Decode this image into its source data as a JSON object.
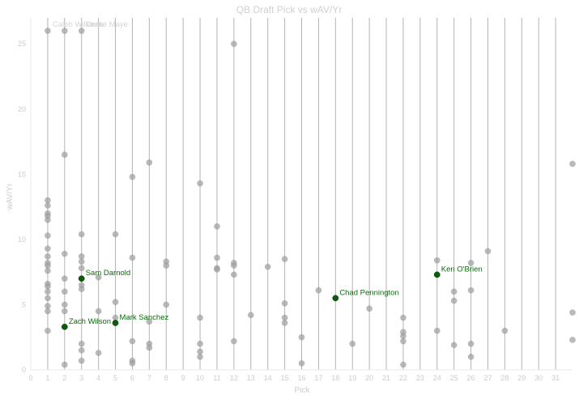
{
  "chart_data": {
    "type": "scatter",
    "title": "QB Draft Pick vs wAV/Yr",
    "xlabel": "Pick",
    "ylabel": "wAV/Yr",
    "xlim": [
      0,
      32
    ],
    "ylim": [
      0,
      27
    ],
    "xticks": [
      0,
      1,
      2,
      3,
      4,
      5,
      6,
      7,
      8,
      9,
      10,
      11,
      12,
      13,
      14,
      15,
      16,
      17,
      18,
      19,
      20,
      21,
      22,
      23,
      24,
      25,
      26,
      27,
      28,
      29,
      30,
      31
    ],
    "yticks": [
      0,
      5,
      10,
      15,
      20,
      25
    ],
    "vertical_grid": true,
    "horizontal_grid": false,
    "colors": {
      "point": "#a0a0a0",
      "highlight": "#0b5d0b",
      "highlight_label": "#0b6b0b"
    },
    "points": [
      [
        1,
        26
      ],
      [
        1,
        13
      ],
      [
        1,
        12.6
      ],
      [
        1,
        12
      ],
      [
        1,
        11.8
      ],
      [
        1,
        11.5
      ],
      [
        1,
        10.3
      ],
      [
        1,
        9.3
      ],
      [
        1,
        8.7
      ],
      [
        1,
        8.2
      ],
      [
        1,
        8.0
      ],
      [
        1,
        7.6
      ],
      [
        1,
        6.6
      ],
      [
        1,
        6.4
      ],
      [
        1,
        6.0
      ],
      [
        1,
        5.5
      ],
      [
        1,
        4.9
      ],
      [
        1,
        4.5
      ],
      [
        1,
        3.0
      ],
      [
        2,
        26
      ],
      [
        2,
        16.5
      ],
      [
        2,
        8.9
      ],
      [
        2,
        7.0
      ],
      [
        2,
        6.0
      ],
      [
        2,
        5.0
      ],
      [
        2,
        4.5
      ],
      [
        2,
        0.4
      ],
      [
        3,
        26
      ],
      [
        3,
        10.4
      ],
      [
        3,
        8.7
      ],
      [
        3,
        8.3
      ],
      [
        3,
        7.8
      ],
      [
        3,
        6.5
      ],
      [
        3,
        6.2
      ],
      [
        3,
        2.0
      ],
      [
        3,
        1.5
      ],
      [
        3,
        0.7
      ],
      [
        4,
        7.1
      ],
      [
        4,
        4.5
      ],
      [
        4,
        1.3
      ],
      [
        5,
        10.4
      ],
      [
        5,
        5.2
      ],
      [
        5,
        4.0
      ],
      [
        6,
        14.8
      ],
      [
        6,
        8.6
      ],
      [
        6,
        2.2
      ],
      [
        6,
        0.7
      ],
      [
        6,
        0.5
      ],
      [
        7,
        15.9
      ],
      [
        7,
        3.7
      ],
      [
        7,
        2.0
      ],
      [
        7,
        1.7
      ],
      [
        8,
        8.3
      ],
      [
        8,
        8.0
      ],
      [
        8,
        5.0
      ],
      [
        10,
        14.3
      ],
      [
        10,
        4.0
      ],
      [
        10,
        2.0
      ],
      [
        10,
        1.4
      ],
      [
        10,
        1.0
      ],
      [
        11,
        11.0
      ],
      [
        11,
        8.6
      ],
      [
        11,
        7.8
      ],
      [
        11,
        7.7
      ],
      [
        12,
        25
      ],
      [
        12,
        8.2
      ],
      [
        12,
        8.0
      ],
      [
        12,
        7.3
      ],
      [
        12,
        2.2
      ],
      [
        13,
        4.2
      ],
      [
        14,
        7.9
      ],
      [
        15,
        8.5
      ],
      [
        15,
        5.1
      ],
      [
        15,
        4.0
      ],
      [
        15,
        3.6
      ],
      [
        16,
        2.5
      ],
      [
        16,
        0.5
      ],
      [
        17,
        6.1
      ],
      [
        19,
        2.0
      ],
      [
        20,
        4.7
      ],
      [
        22,
        4.0
      ],
      [
        22,
        2.9
      ],
      [
        22,
        2.6
      ],
      [
        22,
        2.2
      ],
      [
        22,
        0.4
      ],
      [
        24,
        8.4
      ],
      [
        24,
        3.0
      ],
      [
        25,
        6.0
      ],
      [
        25,
        5.3
      ],
      [
        25,
        1.9
      ],
      [
        26,
        8.2
      ],
      [
        26,
        6.1
      ],
      [
        26,
        2.0
      ],
      [
        26,
        1.0
      ],
      [
        27,
        9.1
      ],
      [
        28,
        3.0
      ],
      [
        32,
        15.8
      ],
      [
        32,
        4.4
      ],
      [
        32,
        2.3
      ]
    ],
    "highlighted": [
      {
        "name": "Sam Darnold",
        "x": 3,
        "y": 7.0
      },
      {
        "name": "Zach Wilson",
        "x": 2,
        "y": 3.3
      },
      {
        "name": "Mark Sanchez",
        "x": 5,
        "y": 3.6
      },
      {
        "name": "Chad Pennington",
        "x": 18,
        "y": 5.5
      },
      {
        "name": "Ken O'Brien",
        "x": 24,
        "y": 7.3
      }
    ],
    "faint_annotations": [
      {
        "text": "Caleb Williams",
        "x": 1,
        "y": 26
      },
      {
        "text": "Drake Maye",
        "x": 3,
        "y": 26
      }
    ]
  }
}
